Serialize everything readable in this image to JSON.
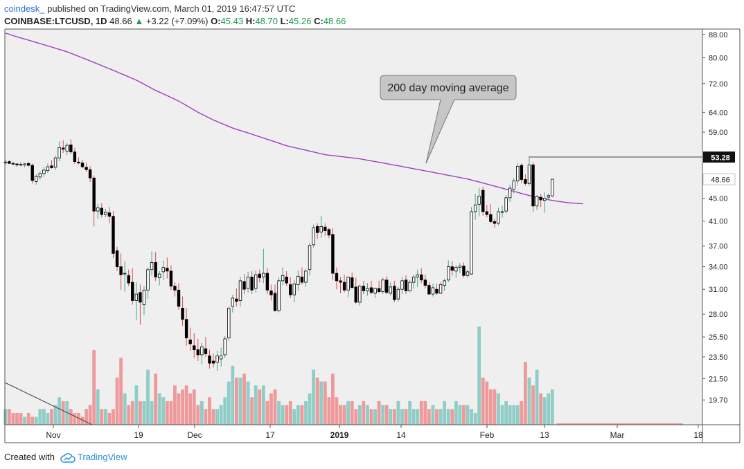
{
  "header": {
    "author": "coindesk_",
    "published_text": "published on TradingView.com, March 01, 2019 16:47:57 UTC",
    "symbol": "COINBASE:LTCUSD, 1D",
    "last": "48.66",
    "change": "+3.22 (+7.09%)",
    "o_label": "O:",
    "o_value": "45.43",
    "h_label": "H:",
    "h_value": "48.70",
    "l_label": "L:",
    "l_value": "45.26",
    "c_label": "C:",
    "c_value": "48.66"
  },
  "footer": {
    "created_with": "Created with",
    "brand": "TradingView"
  },
  "colors": {
    "up_volume": "#8fcdc6",
    "down_volume": "#ef9a9a",
    "ma": "#9c3fbf",
    "background": "#efefef",
    "candle_up_fill": "#ffffff",
    "candle_down_fill": "#000000"
  },
  "chart_data": {
    "type": "candlestick",
    "y_scale": "log",
    "ylim": [
      17.8,
      90
    ],
    "y_ticks": [
      "88.00",
      "80.00",
      "72.00",
      "64.00",
      "59.00",
      "53.28",
      "48.66",
      "45.00",
      "41.00",
      "37.00",
      "34.00",
      "31.00",
      "28.00",
      "25.50",
      "23.50",
      "21.50",
      "19.70"
    ],
    "x_tick_labels": [
      "Nov",
      "19",
      "Dec",
      "17",
      "2019",
      "14",
      "Feb",
      "13",
      "Mar",
      "18"
    ],
    "price_markers": [
      {
        "label": "53.28",
        "value": 53.28,
        "style": "dark"
      },
      {
        "label": "48.66",
        "value": 48.66,
        "style": "light"
      }
    ],
    "annotation": "200 day moving average",
    "ohlc": [
      [
        52.2,
        52.7,
        51.7,
        52.2
      ],
      [
        52.3,
        52.6,
        51.8,
        51.9
      ],
      [
        51.9,
        52.3,
        51.6,
        51.8
      ],
      [
        51.8,
        52.0,
        51.2,
        51.6
      ],
      [
        51.7,
        52.2,
        51.3,
        51.6
      ],
      [
        51.6,
        52.0,
        51.1,
        51.8
      ],
      [
        51.9,
        52.2,
        51.3,
        51.5
      ],
      [
        51.5,
        51.9,
        47.8,
        48.4
      ],
      [
        48.2,
        49.7,
        47.6,
        49.2
      ],
      [
        49.1,
        50.2,
        48.6,
        49.8
      ],
      [
        49.8,
        51.1,
        49.1,
        50.5
      ],
      [
        50.4,
        51.9,
        49.9,
        51.2
      ],
      [
        51.4,
        52.6,
        50.8,
        51.0
      ],
      [
        51.1,
        53.6,
        50.5,
        53.1
      ],
      [
        53.1,
        56.8,
        52.4,
        55.4
      ],
      [
        55.3,
        57.1,
        54.2,
        55.0
      ],
      [
        54.6,
        56.4,
        53.7,
        55.9
      ],
      [
        56.0,
        57.3,
        54.0,
        54.4
      ],
      [
        54.4,
        55.3,
        51.8,
        52.3
      ],
      [
        52.2,
        53.2,
        51.7,
        52.0
      ],
      [
        52.0,
        52.7,
        50.9,
        51.2
      ],
      [
        51.1,
        52.0,
        50.1,
        50.6
      ],
      [
        50.6,
        51.3,
        48.1,
        48.9
      ],
      [
        48.9,
        49.4,
        40.1,
        42.7
      ],
      [
        42.7,
        44.0,
        41.4,
        43.3
      ],
      [
        43.2,
        44.1,
        41.6,
        42.1
      ],
      [
        42.1,
        43.1,
        41.6,
        42.5
      ],
      [
        42.4,
        43.4,
        40.6,
        41.8
      ],
      [
        41.8,
        42.7,
        35.2,
        35.9
      ],
      [
        36.3,
        36.9,
        33.4,
        34.0
      ],
      [
        34.0,
        35.9,
        30.9,
        32.9
      ],
      [
        33.0,
        34.7,
        30.7,
        33.1
      ],
      [
        32.8,
        33.6,
        31.4,
        31.8
      ],
      [
        31.9,
        33.8,
        29.1,
        29.6
      ],
      [
        29.6,
        31.9,
        27.3,
        30.4
      ],
      [
        30.6,
        31.6,
        26.8,
        29.4
      ],
      [
        29.1,
        31.4,
        27.9,
        30.9
      ],
      [
        30.9,
        33.9,
        29.8,
        33.6
      ],
      [
        33.6,
        36.2,
        32.8,
        34.6
      ],
      [
        34.6,
        36.1,
        32.1,
        32.6
      ],
      [
        32.5,
        33.4,
        31.5,
        33.0
      ],
      [
        33.3,
        34.9,
        32.2,
        33.9
      ],
      [
        33.8,
        35.3,
        32.4,
        33.4
      ],
      [
        33.4,
        34.2,
        30.9,
        31.4
      ],
      [
        31.4,
        31.9,
        30.1,
        30.9
      ],
      [
        30.9,
        31.8,
        28.5,
        28.9
      ],
      [
        28.7,
        30.1,
        26.7,
        27.4
      ],
      [
        27.4,
        28.7,
        24.6,
        25.4
      ],
      [
        25.2,
        26.5,
        24.1,
        24.8
      ],
      [
        24.6,
        25.9,
        23.4,
        24.2
      ],
      [
        24.2,
        25.3,
        23.1,
        23.7
      ],
      [
        23.7,
        24.9,
        22.8,
        24.5
      ],
      [
        24.3,
        25.5,
        23.5,
        23.8
      ],
      [
        23.6,
        24.2,
        22.4,
        22.9
      ],
      [
        23.1,
        23.8,
        22.5,
        22.9
      ],
      [
        23.0,
        24.1,
        22.2,
        23.6
      ],
      [
        23.3,
        24.4,
        22.6,
        23.6
      ],
      [
        23.7,
        25.6,
        23.4,
        25.3
      ],
      [
        25.4,
        28.9,
        25.1,
        28.7
      ],
      [
        28.9,
        30.3,
        28.2,
        29.9
      ],
      [
        29.8,
        31.1,
        28.9,
        29.5
      ],
      [
        29.6,
        32.6,
        28.9,
        32.1
      ],
      [
        32.0,
        33.0,
        30.4,
        31.0
      ],
      [
        31.1,
        33.3,
        30.6,
        32.6
      ],
      [
        32.6,
        33.4,
        30.4,
        30.9
      ],
      [
        31.1,
        33.5,
        30.6,
        32.9
      ],
      [
        33.0,
        33.6,
        31.9,
        32.5
      ],
      [
        32.6,
        36.6,
        31.8,
        33.1
      ],
      [
        33.1,
        33.8,
        30.4,
        30.9
      ],
      [
        30.8,
        31.6,
        29.6,
        30.3
      ],
      [
        30.5,
        31.6,
        28.3,
        28.4
      ],
      [
        28.4,
        32.5,
        28.2,
        32.1
      ],
      [
        32.1,
        33.9,
        31.5,
        32.8
      ],
      [
        32.6,
        33.4,
        31.4,
        31.8
      ],
      [
        31.6,
        32.6,
        29.9,
        30.3
      ],
      [
        30.3,
        32.2,
        29.4,
        31.7
      ],
      [
        31.6,
        33.5,
        30.8,
        32.7
      ],
      [
        32.6,
        33.9,
        31.6,
        31.9
      ],
      [
        31.9,
        33.7,
        31.3,
        33.4
      ],
      [
        33.6,
        37.5,
        32.8,
        37.1
      ],
      [
        37.2,
        40.4,
        36.8,
        39.9
      ],
      [
        40.1,
        40.6,
        38.1,
        39.1
      ],
      [
        39.2,
        41.9,
        38.3,
        40.1
      ],
      [
        40.0,
        40.6,
        38.6,
        39.4
      ],
      [
        39.6,
        39.9,
        38.2,
        38.7
      ],
      [
        38.8,
        39.8,
        32.2,
        33.1
      ],
      [
        33.1,
        33.9,
        31.0,
        32.1
      ],
      [
        32.1,
        32.6,
        30.5,
        31.9
      ],
      [
        31.9,
        32.9,
        30.6,
        30.9
      ],
      [
        30.9,
        32.6,
        30.0,
        32.6
      ],
      [
        32.5,
        33.2,
        31.2,
        31.2
      ],
      [
        31.3,
        32.5,
        29.2,
        29.4
      ],
      [
        29.4,
        31.6,
        29.0,
        31.4
      ],
      [
        31.4,
        32.1,
        30.4,
        30.8
      ],
      [
        30.8,
        31.8,
        30.2,
        31.1
      ],
      [
        31.2,
        32.1,
        30.4,
        30.6
      ],
      [
        30.5,
        31.2,
        29.9,
        31.1
      ],
      [
        31.1,
        32.1,
        30.5,
        30.7
      ],
      [
        30.7,
        32.5,
        30.4,
        32.2
      ],
      [
        32.2,
        32.7,
        30.4,
        30.6
      ],
      [
        30.5,
        31.9,
        30.2,
        31.3
      ],
      [
        31.4,
        32.1,
        29.4,
        29.7
      ],
      [
        29.8,
        31.3,
        29.5,
        31.0
      ],
      [
        31.0,
        32.6,
        30.4,
        32.1
      ],
      [
        32.2,
        32.8,
        30.4,
        30.8
      ],
      [
        30.8,
        32.2,
        30.6,
        31.9
      ],
      [
        31.9,
        32.9,
        31.1,
        32.6
      ],
      [
        32.6,
        33.6,
        31.3,
        32.9
      ],
      [
        32.9,
        33.8,
        31.8,
        32.2
      ],
      [
        32.2,
        32.9,
        31.1,
        31.5
      ],
      [
        31.5,
        31.9,
        30.3,
        30.4
      ],
      [
        30.4,
        31.7,
        30.1,
        31.2
      ],
      [
        31.0,
        31.7,
        30.3,
        30.5
      ],
      [
        30.5,
        31.9,
        30.4,
        31.6
      ],
      [
        31.5,
        32.4,
        30.8,
        32.1
      ],
      [
        32.2,
        34.9,
        31.9,
        34.0
      ],
      [
        34.0,
        34.8,
        32.8,
        33.5
      ],
      [
        33.4,
        34.2,
        32.5,
        33.9
      ],
      [
        33.9,
        34.5,
        33.1,
        34.1
      ],
      [
        34.1,
        34.6,
        32.5,
        32.8
      ],
      [
        32.8,
        33.6,
        32.5,
        33.3
      ],
      [
        33.0,
        43.4,
        32.9,
        42.6
      ],
      [
        42.6,
        45.8,
        41.2,
        43.8
      ],
      [
        43.9,
        46.9,
        41.8,
        45.4
      ],
      [
        46.5,
        47.2,
        41.9,
        42.6
      ],
      [
        42.6,
        43.8,
        41.6,
        42.1
      ],
      [
        42.1,
        43.9,
        40.6,
        40.9
      ],
      [
        40.9,
        41.4,
        39.9,
        40.6
      ],
      [
        40.6,
        43.3,
        40.3,
        42.6
      ],
      [
        42.6,
        43.6,
        41.6,
        42.6
      ],
      [
        42.7,
        45.6,
        42.3,
        45.1
      ],
      [
        45.1,
        47.6,
        44.3,
        46.9
      ],
      [
        46.7,
        48.9,
        45.9,
        48.3
      ],
      [
        48.3,
        52.0,
        47.5,
        51.3
      ],
      [
        51.5,
        51.9,
        47.9,
        48.6
      ],
      [
        48.6,
        49.6,
        47.4,
        47.8
      ],
      [
        47.8,
        53.5,
        47.4,
        51.6
      ],
      [
        51.6,
        52.1,
        42.6,
        43.6
      ],
      [
        43.6,
        45.6,
        42.9,
        45.3
      ],
      [
        45.2,
        45.8,
        43.4,
        44.7
      ],
      [
        44.6,
        46.1,
        42.4,
        45.0
      ],
      [
        45.2,
        45.9,
        44.6,
        45.5
      ],
      [
        45.43,
        48.7,
        45.26,
        48.66
      ]
    ],
    "volume": [
      4,
      4,
      3,
      3,
      3,
      2,
      3,
      2,
      2,
      4,
      4,
      3,
      4,
      5,
      7,
      6,
      6,
      4,
      3,
      3,
      2,
      4,
      5,
      19,
      9,
      4,
      4,
      3,
      4,
      12,
      17,
      8,
      5,
      6,
      10,
      6,
      6,
      14,
      6,
      13,
      8,
      7,
      6,
      6,
      10,
      8,
      9,
      10,
      8,
      9,
      5,
      6,
      4,
      7,
      4,
      4,
      5,
      7,
      11,
      15,
      12,
      12,
      13,
      11,
      7,
      10,
      9,
      10,
      6,
      8,
      9,
      6,
      5,
      5,
      6,
      4,
      5,
      5,
      6,
      8,
      14,
      12,
      11,
      11,
      7,
      13,
      7,
      5,
      5,
      6,
      6,
      4,
      5,
      6,
      5,
      4,
      4,
      6,
      5,
      5,
      4,
      4,
      6,
      4,
      4,
      6,
      4,
      4,
      6,
      6,
      4,
      5,
      4,
      4,
      6,
      4,
      4,
      6,
      5,
      5,
      5,
      4,
      3,
      25,
      12,
      11,
      9,
      9,
      8,
      5,
      6,
      5,
      5,
      5,
      6,
      16,
      12,
      10,
      14,
      8,
      7,
      8,
      9,
      14,
      9,
      7,
      6,
      6,
      3
    ],
    "ma200": [
      88.5,
      88.1,
      87.6,
      87.2,
      86.8,
      86.4,
      86.0,
      85.6,
      85.2,
      84.8,
      84.4,
      84.0,
      83.6,
      83.2,
      82.8,
      82.4,
      82.0,
      81.5,
      81.0,
      80.5,
      80.0,
      79.5,
      79.0,
      78.5,
      78.0,
      77.5,
      77.0,
      76.5,
      76.0,
      75.5,
      75.0,
      74.5,
      74.0,
      73.5,
      73.0,
      72.4,
      71.8,
      71.2,
      70.6,
      70.0,
      69.5,
      69.0,
      68.5,
      68.0,
      67.5,
      67.0,
      66.4,
      65.8,
      65.2,
      64.6,
      64.0,
      63.5,
      63.0,
      62.5,
      62.0,
      61.6,
      61.2,
      60.8,
      60.4,
      60.0,
      59.7,
      59.4,
      59.1,
      58.8,
      58.5,
      58.2,
      57.9,
      57.6,
      57.3,
      57.0,
      56.7,
      56.4,
      56.1,
      55.8,
      55.6,
      55.4,
      55.2,
      55.0,
      54.8,
      54.6,
      54.4,
      54.2,
      54.0,
      53.8,
      53.7,
      53.6,
      53.5,
      53.4,
      53.3,
      53.2,
      53.1,
      53.0,
      52.9,
      52.75,
      52.6,
      52.45,
      52.3,
      52.15,
      52.0,
      51.85,
      51.7,
      51.55,
      51.4,
      51.25,
      51.1,
      50.95,
      50.8,
      50.65,
      50.5,
      50.35,
      50.2,
      50.05,
      49.9,
      49.75,
      49.6,
      49.45,
      49.3,
      49.15,
      49.0,
      48.85,
      48.7,
      48.5,
      48.3,
      48.1,
      47.9,
      47.7,
      47.5,
      47.3,
      47.1,
      46.9,
      46.7,
      46.5,
      46.3,
      46.1,
      45.9,
      45.7,
      45.5,
      45.35,
      45.2,
      45.05,
      44.9,
      44.75,
      44.6,
      44.5,
      44.4,
      44.3,
      44.2,
      44.15,
      44.1,
      44.05,
      44.0
    ]
  }
}
